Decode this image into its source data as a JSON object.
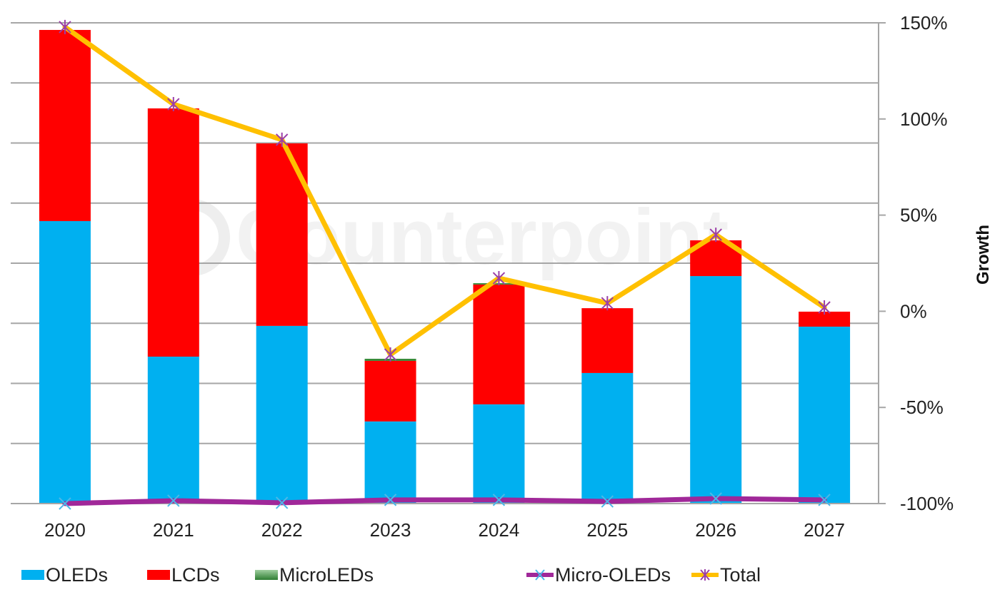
{
  "chart_data": {
    "type": "bar",
    "stacked": true,
    "categories": [
      "2020",
      "2021",
      "2022",
      "2023",
      "2024",
      "2025",
      "2026",
      "2027"
    ],
    "series": [
      {
        "name": "OLEDs",
        "kind": "bar",
        "color": "#00b0f0",
        "tops": [
          46.9,
          -23.6,
          -7.6,
          -57.3,
          -48.4,
          -32.1,
          18.3,
          -8.0
        ]
      },
      {
        "name": "LCDs",
        "kind": "bar",
        "color": "#ff0000",
        "tops": [
          146.3,
          105.5,
          87.3,
          -25.8,
          13.9,
          1.6,
          36.9,
          -0.2
        ]
      },
      {
        "name": "MicroLEDs",
        "kind": "bar",
        "color": "#3a8a3a",
        "tops": [
          146.3,
          105.5,
          87.3,
          -24.7,
          14.6,
          1.6,
          36.9,
          -0.2
        ]
      },
      {
        "name": "Micro-OLEDs",
        "kind": "line",
        "color": "#a02899",
        "marker_color": "#4db8e8",
        "values": [
          -100,
          -98.5,
          -99.6,
          -98.1,
          -98.1,
          -98.9,
          -97.4,
          -98.1
        ]
      },
      {
        "name": "Total",
        "kind": "line",
        "color": "#ffc000",
        "marker_color": "#9b3fa8",
        "values": [
          147.8,
          107.7,
          89.2,
          -22.5,
          17.2,
          4.2,
          39.8,
          2.0
        ]
      }
    ],
    "bar_baseline": -100,
    "title": "",
    "xlabel": "",
    "ylabel": "Growth",
    "ylim": [
      -100,
      150
    ],
    "yticks": [
      -100,
      -50,
      0,
      50,
      100,
      150
    ],
    "ytick_labels": [
      "-100%",
      "-50%",
      "0%",
      "50%",
      "100%",
      "150%"
    ],
    "grid": true,
    "legend_position": "bottom",
    "watermark": "Counterpoint"
  },
  "legend": [
    {
      "label": "OLEDs",
      "type": "box",
      "color": "#00b0f0"
    },
    {
      "label": "LCDs",
      "type": "box",
      "color": "#ff0000"
    },
    {
      "label": "MicroLEDs",
      "type": "box",
      "color": "#3a8a3a"
    },
    {
      "label": "Micro-OLEDs",
      "type": "line",
      "color": "#a02899",
      "marker_color": "#4db8e8"
    },
    {
      "label": "Total",
      "type": "line",
      "color": "#ffc000",
      "marker_color": "#9b3fa8"
    }
  ]
}
